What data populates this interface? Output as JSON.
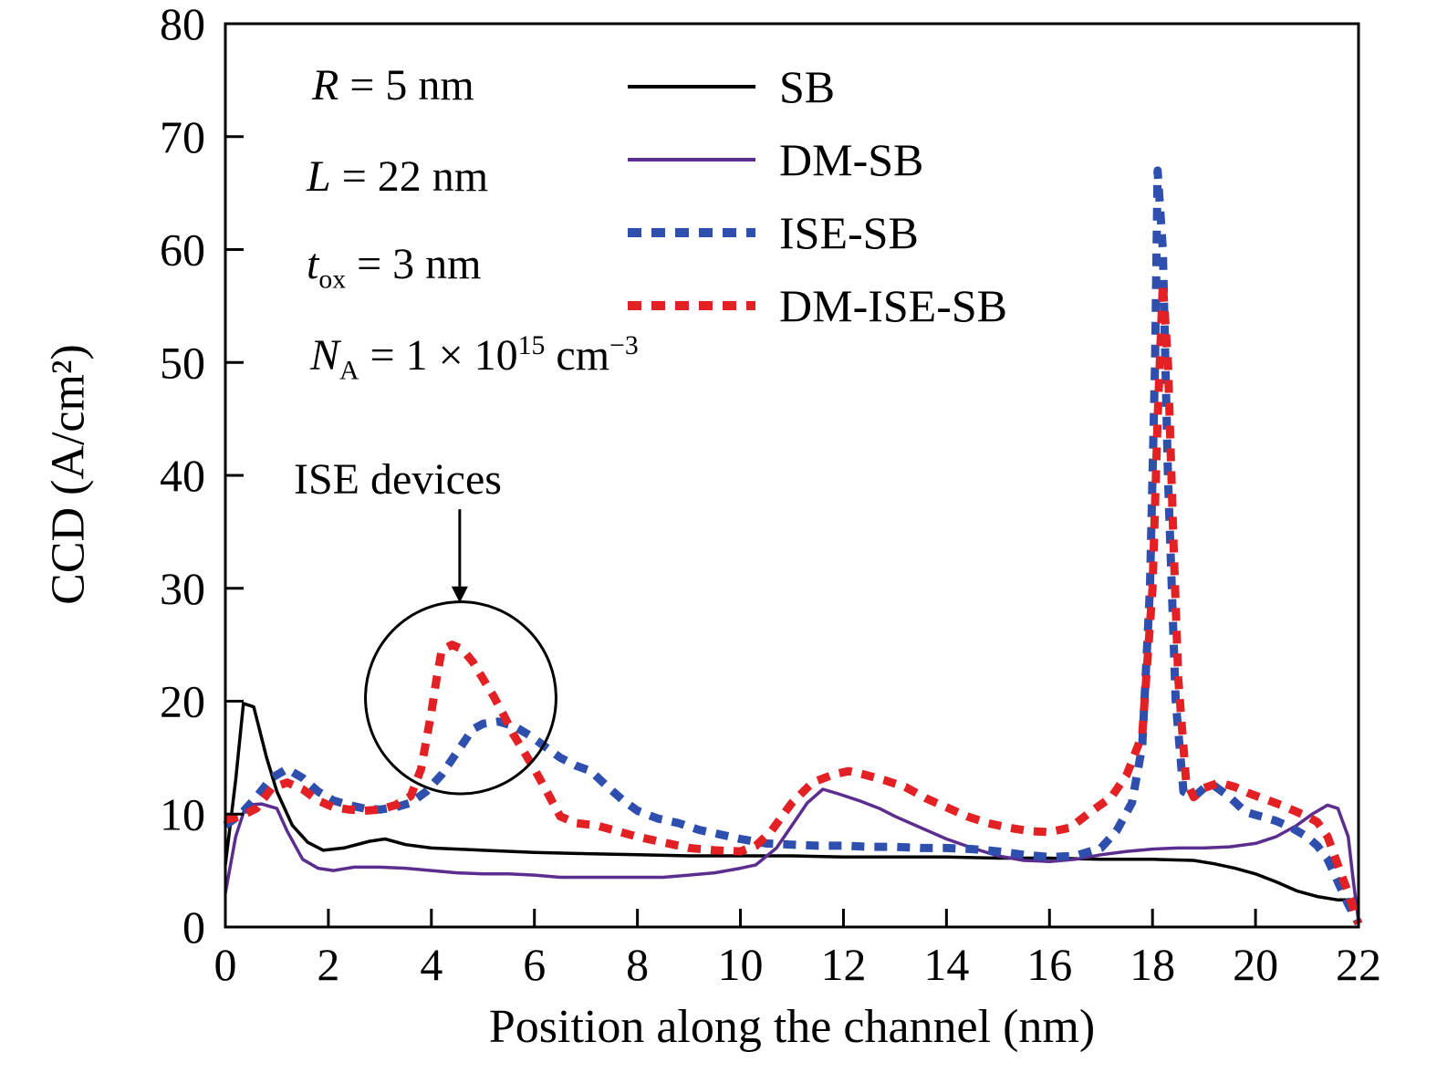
{
  "chart_data": {
    "type": "line",
    "title": "",
    "xlabel": "Position along the channel (nm)",
    "ylabel": "CCD (A/cm²)",
    "xlim": [
      0,
      22
    ],
    "ylim": [
      0,
      80
    ],
    "xticks": [
      0,
      2,
      4,
      6,
      8,
      10,
      12,
      14,
      16,
      18,
      20,
      22
    ],
    "yticks": [
      0,
      10,
      20,
      30,
      40,
      50,
      60,
      70,
      80
    ],
    "grid": false,
    "legend_position": "top-center-inside",
    "series": [
      {
        "name": "SB",
        "color": "#000000",
        "style": "solid",
        "width": 3.5,
        "points": [
          [
            0,
            5.5
          ],
          [
            0.2,
            13
          ],
          [
            0.35,
            19.8
          ],
          [
            0.55,
            19.5
          ],
          [
            0.8,
            15
          ],
          [
            1.0,
            12
          ],
          [
            1.3,
            9
          ],
          [
            1.6,
            7.5
          ],
          [
            1.9,
            6.8
          ],
          [
            2.3,
            7.0
          ],
          [
            2.8,
            7.6
          ],
          [
            3.1,
            7.8
          ],
          [
            3.5,
            7.3
          ],
          [
            4,
            7.0
          ],
          [
            4.5,
            6.9
          ],
          [
            5,
            6.8
          ],
          [
            6,
            6.6
          ],
          [
            7,
            6.5
          ],
          [
            8,
            6.4
          ],
          [
            9,
            6.3
          ],
          [
            10,
            6.3
          ],
          [
            11,
            6.3
          ],
          [
            12,
            6.2
          ],
          [
            13,
            6.2
          ],
          [
            14,
            6.2
          ],
          [
            15,
            6.1
          ],
          [
            16,
            6.1
          ],
          [
            17,
            6.0
          ],
          [
            18,
            6.0
          ],
          [
            18.8,
            5.9
          ],
          [
            19.2,
            5.6
          ],
          [
            19.6,
            5.2
          ],
          [
            20,
            4.7
          ],
          [
            20.4,
            4.0
          ],
          [
            20.8,
            3.2
          ],
          [
            21.2,
            2.7
          ],
          [
            21.6,
            2.4
          ],
          [
            22,
            2.4
          ]
        ]
      },
      {
        "name": "DM-SB",
        "color": "#5b2d8e",
        "style": "solid",
        "width": 3.5,
        "points": [
          [
            0,
            3
          ],
          [
            0.2,
            8
          ],
          [
            0.4,
            10.8
          ],
          [
            0.7,
            10.9
          ],
          [
            1.0,
            10.5
          ],
          [
            1.2,
            8.5
          ],
          [
            1.5,
            6
          ],
          [
            1.8,
            5.2
          ],
          [
            2.1,
            5.0
          ],
          [
            2.5,
            5.3
          ],
          [
            3,
            5.3
          ],
          [
            3.5,
            5.2
          ],
          [
            4,
            5.0
          ],
          [
            4.5,
            4.8
          ],
          [
            5,
            4.7
          ],
          [
            5.5,
            4.7
          ],
          [
            6,
            4.6
          ],
          [
            6.5,
            4.4
          ],
          [
            7,
            4.4
          ],
          [
            7.5,
            4.4
          ],
          [
            8,
            4.4
          ],
          [
            8.5,
            4.4
          ],
          [
            9,
            4.6
          ],
          [
            9.5,
            4.8
          ],
          [
            10,
            5.2
          ],
          [
            10.3,
            5.5
          ],
          [
            10.7,
            7
          ],
          [
            11,
            9
          ],
          [
            11.3,
            11
          ],
          [
            11.6,
            12.2
          ],
          [
            11.9,
            11.8
          ],
          [
            12.3,
            11.2
          ],
          [
            12.7,
            10.5
          ],
          [
            13,
            9.8
          ],
          [
            13.5,
            8.8
          ],
          [
            14,
            7.8
          ],
          [
            14.5,
            7.0
          ],
          [
            15,
            6.3
          ],
          [
            15.5,
            5.9
          ],
          [
            16,
            5.8
          ],
          [
            16.5,
            6.0
          ],
          [
            17,
            6.4
          ],
          [
            17.5,
            6.7
          ],
          [
            18,
            6.9
          ],
          [
            18.5,
            7.0
          ],
          [
            19,
            7.0
          ],
          [
            19.5,
            7.1
          ],
          [
            20,
            7.4
          ],
          [
            20.4,
            8.0
          ],
          [
            20.8,
            9.0
          ],
          [
            21.1,
            10.0
          ],
          [
            21.4,
            10.8
          ],
          [
            21.6,
            10.5
          ],
          [
            21.8,
            8.0
          ],
          [
            21.9,
            4.0
          ],
          [
            22,
            0.5
          ]
        ]
      },
      {
        "name": "ISE-SB",
        "color": "#2e4fae",
        "style": "dashed",
        "width": 9,
        "points": [
          [
            0,
            9
          ],
          [
            0.3,
            10
          ],
          [
            0.6,
            11.5
          ],
          [
            0.9,
            13.2
          ],
          [
            1.2,
            14
          ],
          [
            1.5,
            13.2
          ],
          [
            1.8,
            12
          ],
          [
            2.1,
            11.2
          ],
          [
            2.4,
            10.8
          ],
          [
            2.7,
            10.5
          ],
          [
            3.0,
            10.4
          ],
          [
            3.3,
            10.6
          ],
          [
            3.6,
            11
          ],
          [
            3.9,
            12
          ],
          [
            4.2,
            13.5
          ],
          [
            4.5,
            15.5
          ],
          [
            4.8,
            17.5
          ],
          [
            5.0,
            18
          ],
          [
            5.3,
            18.2
          ],
          [
            5.6,
            17.8
          ],
          [
            5.9,
            17
          ],
          [
            6.2,
            16
          ],
          [
            6.5,
            15
          ],
          [
            6.8,
            14.3
          ],
          [
            7.1,
            13.8
          ],
          [
            7.4,
            12.5
          ],
          [
            7.7,
            11.3
          ],
          [
            8.0,
            10.3
          ],
          [
            8.4,
            9.6
          ],
          [
            8.8,
            9.2
          ],
          [
            9.2,
            8.6
          ],
          [
            9.6,
            8.2
          ],
          [
            10,
            7.8
          ],
          [
            10.5,
            7.4
          ],
          [
            11,
            7.3
          ],
          [
            11.5,
            7.2
          ],
          [
            12,
            7.2
          ],
          [
            12.5,
            7.1
          ],
          [
            13,
            7.1
          ],
          [
            13.5,
            7.0
          ],
          [
            14,
            7.0
          ],
          [
            14.5,
            6.9
          ],
          [
            15,
            6.7
          ],
          [
            15.5,
            6.4
          ],
          [
            16,
            6.2
          ],
          [
            16.5,
            6.3
          ],
          [
            17,
            7.0
          ],
          [
            17.3,
            8.5
          ],
          [
            17.6,
            11
          ],
          [
            17.8,
            16
          ],
          [
            17.95,
            30
          ],
          [
            18.05,
            50
          ],
          [
            18.1,
            67
          ],
          [
            18.2,
            60
          ],
          [
            18.3,
            40
          ],
          [
            18.45,
            20
          ],
          [
            18.6,
            12
          ],
          [
            18.8,
            11.5
          ],
          [
            19.0,
            12.3
          ],
          [
            19.2,
            12.5
          ],
          [
            19.5,
            11.5
          ],
          [
            19.8,
            10.2
          ],
          [
            20.1,
            9.8
          ],
          [
            20.4,
            9.4
          ],
          [
            20.7,
            8.8
          ],
          [
            21.0,
            8.0
          ],
          [
            21.2,
            7.2
          ],
          [
            21.4,
            6.0
          ],
          [
            21.6,
            4.0
          ],
          [
            21.8,
            2.0
          ],
          [
            22,
            0.3
          ]
        ]
      },
      {
        "name": "DM-ISE-SB",
        "color": "#e32124",
        "style": "dashed",
        "width": 9,
        "points": [
          [
            0,
            9.5
          ],
          [
            0.3,
            9.8
          ],
          [
            0.6,
            10.5
          ],
          [
            0.9,
            12.3
          ],
          [
            1.2,
            12.8
          ],
          [
            1.5,
            12.2
          ],
          [
            1.8,
            11.2
          ],
          [
            2.1,
            10.6
          ],
          [
            2.4,
            10.4
          ],
          [
            2.7,
            10.3
          ],
          [
            3.0,
            10.4
          ],
          [
            3.3,
            10.8
          ],
          [
            3.6,
            11.6
          ],
          [
            3.8,
            14
          ],
          [
            4.0,
            19
          ],
          [
            4.1,
            22
          ],
          [
            4.2,
            24.5
          ],
          [
            4.4,
            25
          ],
          [
            4.6,
            24.6
          ],
          [
            4.8,
            23.5
          ],
          [
            5.0,
            22
          ],
          [
            5.2,
            20.5
          ],
          [
            5.4,
            18.8
          ],
          [
            5.6,
            17
          ],
          [
            5.8,
            15.5
          ],
          [
            6.0,
            14
          ],
          [
            6.3,
            11.5
          ],
          [
            6.5,
            9.8
          ],
          [
            6.8,
            9.2
          ],
          [
            7.2,
            9.0
          ],
          [
            7.6,
            8.5
          ],
          [
            8.0,
            8.0
          ],
          [
            8.5,
            7.5
          ],
          [
            9.0,
            7.0
          ],
          [
            9.5,
            6.8
          ],
          [
            10,
            6.7
          ],
          [
            10.3,
            7.2
          ],
          [
            10.6,
            8.5
          ],
          [
            11,
            11
          ],
          [
            11.4,
            12.8
          ],
          [
            11.8,
            13.5
          ],
          [
            12.1,
            13.8
          ],
          [
            12.4,
            13.5
          ],
          [
            12.8,
            13.0
          ],
          [
            13.2,
            12.4
          ],
          [
            13.6,
            11.4
          ],
          [
            14,
            10.6
          ],
          [
            14.4,
            9.8
          ],
          [
            14.8,
            9.2
          ],
          [
            15.2,
            8.8
          ],
          [
            15.6,
            8.5
          ],
          [
            16,
            8.4
          ],
          [
            16.4,
            8.8
          ],
          [
            16.8,
            10.2
          ],
          [
            17.2,
            11.5
          ],
          [
            17.5,
            13.5
          ],
          [
            17.8,
            17
          ],
          [
            18.0,
            30
          ],
          [
            18.1,
            45
          ],
          [
            18.2,
            57
          ],
          [
            18.3,
            50
          ],
          [
            18.4,
            35
          ],
          [
            18.5,
            22
          ],
          [
            18.65,
            13
          ],
          [
            18.8,
            11.5
          ],
          [
            19.0,
            12.3
          ],
          [
            19.3,
            12.8
          ],
          [
            19.6,
            12.4
          ],
          [
            19.9,
            11.8
          ],
          [
            20.2,
            11.3
          ],
          [
            20.5,
            10.8
          ],
          [
            20.8,
            10.2
          ],
          [
            21.0,
            9.8
          ],
          [
            21.2,
            9.3
          ],
          [
            21.4,
            8.0
          ],
          [
            21.6,
            5.5
          ],
          [
            21.8,
            3.0
          ],
          [
            22,
            0.3
          ]
        ]
      }
    ],
    "annotations": {
      "params": {
        "r": {
          "var": "R",
          "rest": " = 5 nm"
        },
        "l": {
          "var": "L",
          "rest": " = 22 nm"
        },
        "tox": {
          "var": "t",
          "sub": "ox",
          "rest": " = 3 nm"
        },
        "na": {
          "var": "N",
          "sub": "A",
          "mid": " =  1 × 10",
          "sup": "15",
          "mid2": " cm",
          "sup2": "−3"
        }
      },
      "ise_label": "ISE devices",
      "circle": {
        "cx": 4.57,
        "cy": 20.3,
        "rx": 1.85,
        "ry": 8.5
      },
      "arrow": {
        "x": 4.55,
        "y_from": 37,
        "y_to": 30
      }
    }
  }
}
